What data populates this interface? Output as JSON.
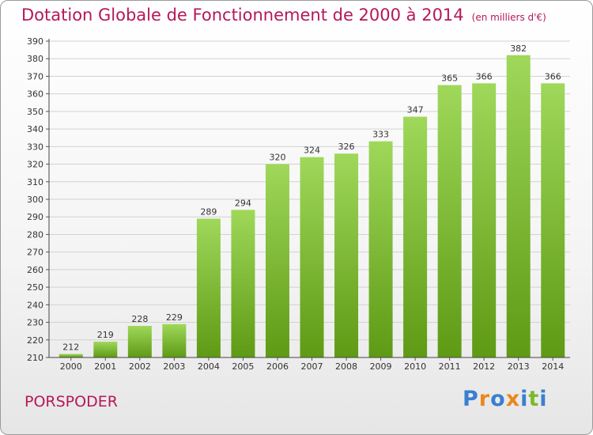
{
  "chart_data": {
    "type": "bar",
    "title": "Dotation Globale de Fonctionnement de 2000 à 2014",
    "subtitle": "(en milliers d'€)",
    "categories": [
      "2000",
      "2001",
      "2002",
      "2003",
      "2004",
      "2005",
      "2006",
      "2007",
      "2008",
      "2009",
      "2010",
      "2011",
      "2012",
      "2013",
      "2014"
    ],
    "values": [
      212,
      219,
      228,
      229,
      289,
      294,
      320,
      324,
      326,
      333,
      347,
      365,
      366,
      382,
      366
    ],
    "ylim": [
      210,
      390
    ],
    "ytick_step": 10,
    "grid": true,
    "bar_color_top": "#9fd85a",
    "bar_color_bottom": "#5e9a14"
  },
  "footer": {
    "place": "PORSPODER",
    "logo_letters": [
      {
        "char": "P",
        "color": "#3a7fd0"
      },
      {
        "char": "r",
        "color": "#e8881e"
      },
      {
        "char": "o",
        "color": "#3a7fd0"
      },
      {
        "char": "x",
        "color": "#e8881e"
      },
      {
        "char": "i",
        "color": "#3a7fd0"
      },
      {
        "char": "t",
        "color": "#7cb82c"
      },
      {
        "char": "i",
        "color": "#3a7fd0"
      }
    ]
  }
}
